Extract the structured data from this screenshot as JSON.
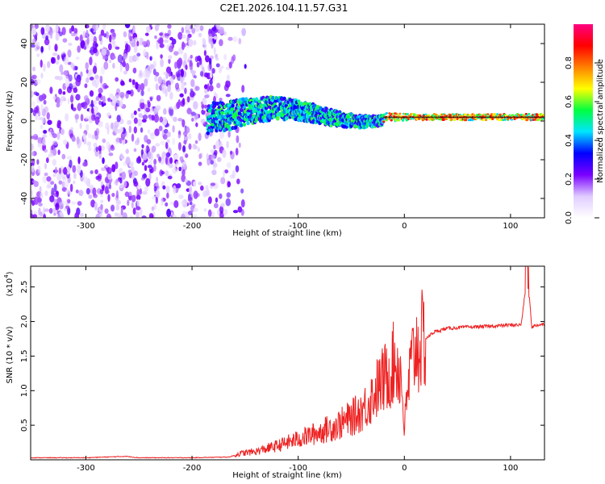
{
  "title": "C2E1.2026.104.11.57.G31",
  "chart_data": [
    {
      "type": "heatmap",
      "xlabel": "Height of straight line (km)",
      "ylabel": "Frequency (Hz)",
      "xlim": [
        -352,
        132
      ],
      "ylim": [
        -50,
        50
      ],
      "xticks": [
        -300,
        -200,
        -100,
        0,
        100
      ],
      "xtick_labels": [
        "-300",
        "-200",
        "-100",
        "0",
        "100"
      ],
      "yticks": [
        -40,
        -20,
        0,
        20,
        40
      ],
      "ytick_labels": [
        "-40",
        "-20",
        "0",
        "20",
        "40"
      ],
      "colorbar": {
        "label": "Normalized spectral amplitude",
        "range": [
          0,
          1
        ],
        "ticks": [
          0.0,
          0.2,
          0.4,
          0.6,
          0.8
        ],
        "tick_labels": [
          "0.0",
          "0.2",
          "0.4",
          "0.6",
          "0.8"
        ],
        "colormap": [
          "#ffffff",
          "#e0ccff",
          "#7a00ff",
          "#0000ff",
          "#00e5ff",
          "#00ff40",
          "#ffff00",
          "#ff8000",
          "#ff0000",
          "#ff0080"
        ]
      },
      "description_values": {
        "noise_region_km": [
          -352,
          -150
        ],
        "signal_band_center_hz": 2,
        "signal_band_halfwidth_hz": [
          8,
          1.5
        ]
      }
    },
    {
      "type": "line",
      "xlabel": "Height of straight line (km)",
      "ylabel": "SNR (10 * v/v)",
      "y_scale_label": "(x10",
      "y_scale_exponent": "4",
      "y_scale_suffix": ")",
      "xlim": [
        -352,
        132
      ],
      "ylim": [
        0,
        2.8
      ],
      "xticks": [
        -300,
        -200,
        -100,
        0,
        100
      ],
      "xtick_labels": [
        "-300",
        "-200",
        "-100",
        "0",
        "100"
      ],
      "yticks": [
        0.5,
        1.0,
        1.5,
        2.0,
        2.5
      ],
      "ytick_labels": [
        "0.5",
        "1.0",
        "1.5",
        "2.0",
        "2.5"
      ],
      "series": [
        {
          "name": "SNR",
          "color": "#ee2222",
          "x": [
            -352,
            -300,
            -262,
            -250,
            -200,
            -165,
            -155,
            -140,
            -120,
            -100,
            -80,
            -60,
            -45,
            -35,
            -25,
            -15,
            -8,
            -3,
            0,
            5,
            10,
            20,
            28,
            40,
            60,
            80,
            100,
            110,
            116,
            120,
            125,
            132
          ],
          "y": [
            0.03,
            0.03,
            0.05,
            0.03,
            0.03,
            0.04,
            0.09,
            0.12,
            0.2,
            0.3,
            0.4,
            0.52,
            0.65,
            0.8,
            1.05,
            1.25,
            1.45,
            1.2,
            0.45,
            1.25,
            1.6,
            1.75,
            1.85,
            1.9,
            1.92,
            1.93,
            1.95,
            1.95,
            2.7,
            1.92,
            1.95,
            1.96
          ]
        }
      ]
    }
  ]
}
